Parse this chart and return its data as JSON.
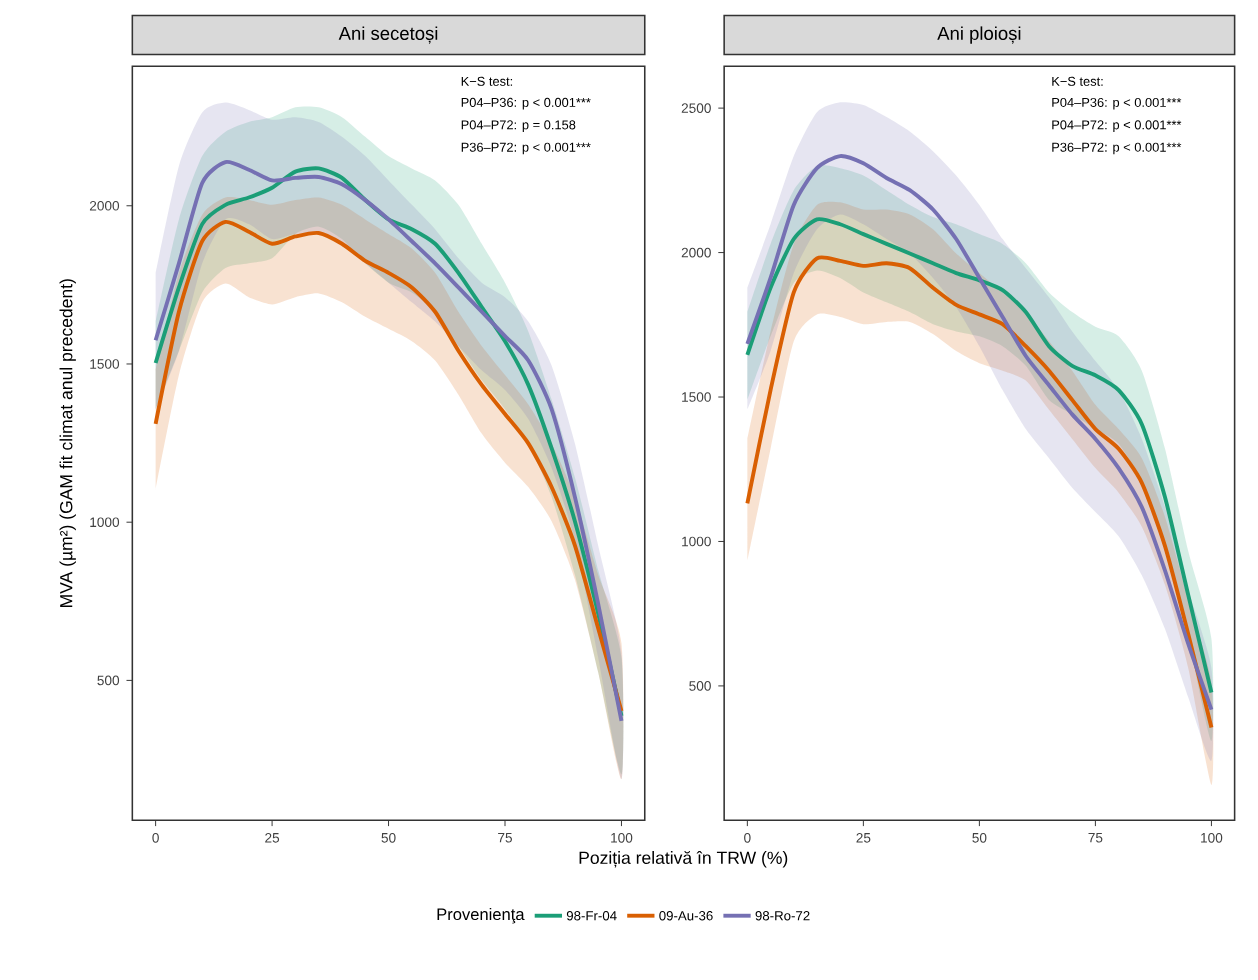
{
  "chart_data": [
    {
      "type": "line",
      "title": "Ani secetoși",
      "xlabel": "Poziția relativă în TRW (%)",
      "ylabel": "MVA (µm²) (GAM fit climat anul precedent)",
      "legend_title": "Provenienţa",
      "legend": "bottom",
      "annotations": [
        "K−S test:",
        "P04–P36: p < 0.001***",
        "P04–P72: p = 0.158",
        "P36–P72: p < 0.001***"
      ],
      "x": [
        0,
        5,
        10,
        15,
        20,
        25,
        30,
        35,
        40,
        45,
        50,
        55,
        60,
        65,
        70,
        75,
        80,
        85,
        90,
        95,
        100
      ],
      "xlim": [
        -5,
        105
      ],
      "ylim": [
        58,
        2441
      ],
      "xticks": [
        0,
        25,
        50,
        75,
        100
      ],
      "yticks": [
        500,
        1000,
        1500,
        2000
      ],
      "series": [
        {
          "name": "98-Fr-04",
          "color": "#1b9e77",
          "values": [
            1503,
            1742,
            1942,
            2003,
            2026,
            2057,
            2108,
            2118,
            2088,
            2018,
            1957,
            1926,
            1880,
            1788,
            1680,
            1572,
            1434,
            1234,
            1003,
            711,
            388
          ],
          "lower": [
            1357,
            1541,
            1726,
            1803,
            1818,
            1834,
            1911,
            1934,
            1895,
            1818,
            1757,
            1726,
            1665,
            1557,
            1449,
            1357,
            1249,
            1080,
            834,
            526,
            203
          ],
          "upper": [
            1634,
            1957,
            2157,
            2234,
            2265,
            2280,
            2311,
            2311,
            2280,
            2218,
            2157,
            2118,
            2080,
            2003,
            1880,
            1757,
            1603,
            1388,
            1142,
            849,
            572
          ]
        },
        {
          "name": "09-Au-36",
          "color": "#d95f02",
          "values": [
            1311,
            1665,
            1888,
            1949,
            1918,
            1880,
            1903,
            1914,
            1880,
            1826,
            1788,
            1742,
            1665,
            1542,
            1434,
            1342,
            1249,
            1111,
            927,
            665,
            403
          ],
          "lower": [
            1103,
            1465,
            1695,
            1754,
            1711,
            1688,
            1711,
            1723,
            1695,
            1649,
            1611,
            1572,
            1511,
            1403,
            1280,
            1188,
            1111,
            1003,
            819,
            526,
            188
          ],
          "upper": [
            1480,
            1788,
            1972,
            2026,
            2018,
            2003,
            2018,
            2026,
            2003,
            1957,
            1911,
            1865,
            1788,
            1665,
            1557,
            1465,
            1372,
            1249,
            1080,
            834,
            618
          ]
        },
        {
          "name": "98-Ro-72",
          "color": "#7570b3",
          "values": [
            1575,
            1818,
            2072,
            2138,
            2114,
            2080,
            2088,
            2091,
            2068,
            2018,
            1957,
            1888,
            1818,
            1742,
            1665,
            1588,
            1511,
            1357,
            1080,
            742,
            372
          ],
          "lower": [
            1357,
            1541,
            1818,
            1957,
            1942,
            1895,
            1911,
            1911,
            1880,
            1818,
            1757,
            1695,
            1634,
            1557,
            1480,
            1418,
            1326,
            1172,
            942,
            572,
            188
          ],
          "upper": [
            1788,
            2126,
            2295,
            2326,
            2303,
            2272,
            2280,
            2265,
            2218,
            2157,
            2080,
            2003,
            1926,
            1834,
            1757,
            1711,
            1634,
            1495,
            1249,
            926,
            588
          ]
        }
      ]
    },
    {
      "type": "line",
      "title": "Ani ploioși",
      "annotations": [
        "K−S test:",
        "P04–P36: p < 0.001***",
        "P04–P72: p < 0.001***",
        "P36–P72: p < 0.001***"
      ],
      "x": [
        0,
        5,
        10,
        15,
        20,
        25,
        30,
        35,
        40,
        45,
        50,
        55,
        60,
        65,
        70,
        75,
        80,
        85,
        90,
        95,
        100
      ],
      "xlim": [
        -5,
        105
      ],
      "ylim": [
        35,
        2645
      ],
      "xticks": [
        0,
        25,
        50,
        75,
        100
      ],
      "yticks": [
        500,
        1000,
        1500,
        2000,
        2500
      ],
      "series": [
        {
          "color": "#1b9e77",
          "values": [
            1646,
            1878,
            2047,
            2115,
            2098,
            2064,
            2030,
            1997,
            1963,
            1929,
            1904,
            1870,
            1794,
            1676,
            1608,
            1575,
            1524,
            1406,
            1153,
            815,
            477
          ],
          "lower": [
            1490,
            1710,
            1895,
            1938,
            1912,
            1862,
            1828,
            1794,
            1752,
            1727,
            1710,
            1676,
            1608,
            1490,
            1440,
            1389,
            1338,
            1203,
            967,
            663,
            309
          ],
          "upper": [
            1794,
            2030,
            2216,
            2300,
            2292,
            2267,
            2216,
            2165,
            2123,
            2098,
            2064,
            2030,
            1963,
            1862,
            1794,
            1743,
            1710,
            1591,
            1321,
            967,
            663
          ]
        },
        {
          "color": "#d95f02",
          "values": [
            1132,
            1524,
            1862,
            1980,
            1971,
            1954,
            1963,
            1946,
            1878,
            1819,
            1786,
            1752,
            1676,
            1591,
            1490,
            1389,
            1321,
            1203,
            984,
            680,
            356
          ],
          "lower": [
            933,
            1321,
            1693,
            1786,
            1777,
            1752,
            1760,
            1760,
            1718,
            1659,
            1617,
            1591,
            1557,
            1456,
            1355,
            1254,
            1169,
            1051,
            849,
            562,
            157
          ],
          "upper": [
            1355,
            1727,
            2030,
            2165,
            2174,
            2149,
            2149,
            2132,
            2081,
            1997,
            1929,
            1862,
            1794,
            1693,
            1591,
            1473,
            1389,
            1288,
            1085,
            798,
            511
          ]
        },
        {
          "color": "#7570b3",
          "values": [
            1684,
            1912,
            2165,
            2292,
            2334,
            2309,
            2258,
            2216,
            2149,
            2047,
            1912,
            1777,
            1642,
            1541,
            1440,
            1355,
            1254,
            1119,
            899,
            646,
            418
          ],
          "lower": [
            1456,
            1659,
            1929,
            2081,
            2132,
            2098,
            2047,
            1997,
            1912,
            1811,
            1676,
            1524,
            1389,
            1288,
            1186,
            1102,
            1018,
            883,
            697,
            461,
            241
          ],
          "upper": [
            1878,
            2098,
            2334,
            2486,
            2520,
            2511,
            2469,
            2419,
            2351,
            2267,
            2165,
            2047,
            1946,
            1845,
            1727,
            1625,
            1524,
            1355,
            1119,
            832,
            562
          ]
        }
      ]
    }
  ]
}
